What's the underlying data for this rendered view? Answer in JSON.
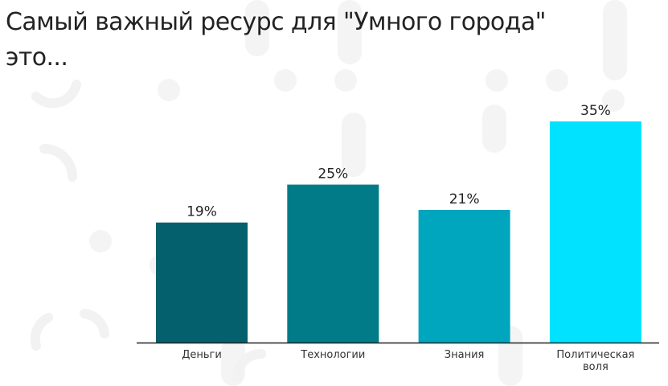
{
  "title_line1": "Самый важный ресурс для \"Умного города\"",
  "title_line2": "это...",
  "chart_data": {
    "type": "bar",
    "categories": [
      "Деньги",
      "Технологии",
      "Знания",
      "Политическая воля"
    ],
    "category_lines": [
      [
        "Деньги"
      ],
      [
        "Технологии"
      ],
      [
        "Знания"
      ],
      [
        "Политическая",
        "воля"
      ]
    ],
    "values": [
      19,
      25,
      21,
      35
    ],
    "value_labels": [
      "19%",
      "25%",
      "21%",
      "35%"
    ],
    "colors": [
      "#03606c",
      "#027b88",
      "#00a5be",
      "#00e2ff"
    ],
    "ylim": [
      0,
      35
    ],
    "grid": false,
    "legend": "none"
  }
}
